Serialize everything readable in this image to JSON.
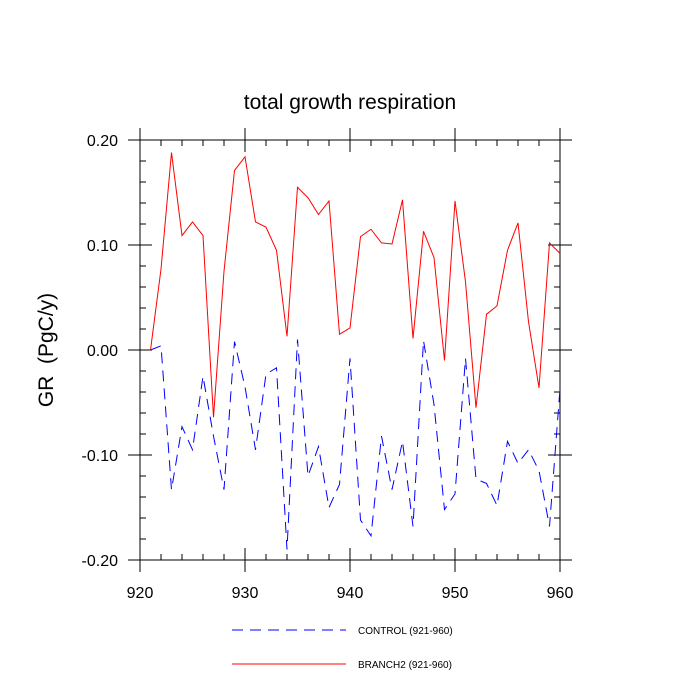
{
  "chart_data": {
    "type": "line",
    "title": "total growth respiration",
    "xlabel": "",
    "ylabel": "GR  (PgC/y)",
    "xlim": [
      920,
      960
    ],
    "ylim": [
      -0.2,
      0.2
    ],
    "x_ticks": [
      920,
      930,
      940,
      950,
      960
    ],
    "x_tick_labels": [
      "920",
      "930",
      "940",
      "950",
      "960"
    ],
    "y_ticks": [
      -0.2,
      -0.1,
      0.0,
      0.1,
      0.2
    ],
    "y_tick_labels": [
      "-0.20",
      "-0.10",
      "0.00",
      "0.10",
      "0.20"
    ],
    "legend_position": "bottom",
    "x": [
      921,
      922,
      923,
      924,
      925,
      926,
      927,
      928,
      929,
      930,
      931,
      932,
      933,
      934,
      935,
      936,
      937,
      938,
      939,
      940,
      941,
      942,
      943,
      944,
      945,
      946,
      947,
      948,
      949,
      950,
      951,
      952,
      953,
      954,
      955,
      956,
      957,
      958,
      959,
      960
    ],
    "series": [
      {
        "name": "CONTROL (921-960)",
        "color": "#0000ff",
        "dash": "dashed",
        "values": [
          0.0,
          0.004,
          -0.133,
          -0.073,
          -0.095,
          -0.025,
          -0.082,
          -0.133,
          0.008,
          -0.035,
          -0.095,
          -0.023,
          -0.017,
          -0.19,
          0.01,
          -0.12,
          -0.092,
          -0.15,
          -0.128,
          -0.008,
          -0.162,
          -0.177,
          -0.082,
          -0.133,
          -0.087,
          -0.168,
          0.009,
          -0.052,
          -0.152,
          -0.137,
          -0.008,
          -0.123,
          -0.127,
          -0.148,
          -0.087,
          -0.108,
          -0.095,
          -0.115,
          -0.168,
          -0.037
        ]
      },
      {
        "name": "BRANCH2 (921-960)",
        "color": "#ff0000",
        "dash": "solid",
        "values": [
          0.0,
          0.077,
          0.188,
          0.109,
          0.122,
          0.109,
          -0.064,
          0.075,
          0.171,
          0.184,
          0.122,
          0.117,
          0.095,
          0.013,
          0.155,
          0.145,
          0.129,
          0.142,
          0.015,
          0.021,
          0.108,
          0.115,
          0.102,
          0.101,
          0.143,
          0.011,
          0.113,
          0.088,
          -0.01,
          0.142,
          0.065,
          -0.055,
          0.034,
          0.042,
          0.095,
          0.121,
          0.027,
          -0.036,
          0.102,
          0.092
        ]
      }
    ]
  }
}
